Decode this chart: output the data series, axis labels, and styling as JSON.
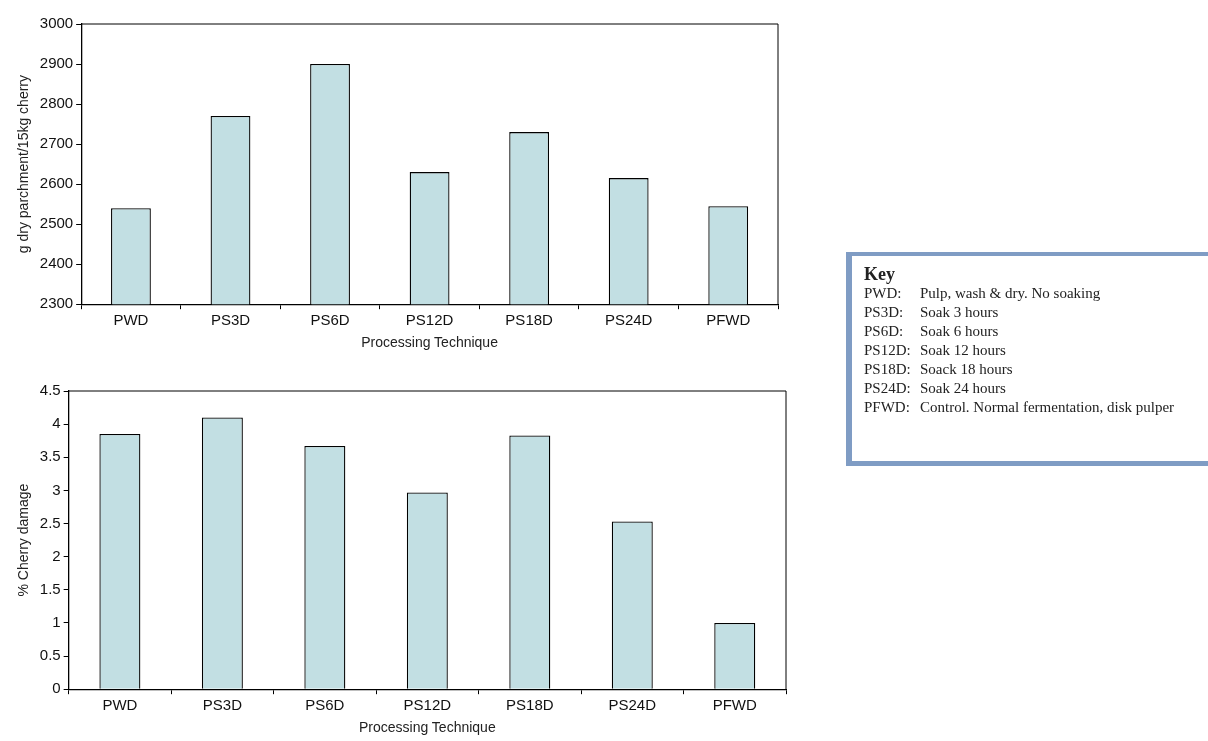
{
  "chart_data": [
    {
      "type": "bar",
      "categories": [
        "PWD",
        "PS3D",
        "PS6D",
        "PS12D",
        "PS18D",
        "PS24D",
        "PFWD"
      ],
      "values": [
        2540,
        2770,
        2900,
        2630,
        2730,
        2615,
        2545
      ],
      "color": "#c2dfe3",
      "ylim": [
        2300,
        3000
      ],
      "yticks": [
        2300,
        2400,
        2500,
        2600,
        2700,
        2800,
        2900,
        3000
      ],
      "xlabel": "Processing Technique",
      "ylabel": "g dry parchment/15kg cherry"
    },
    {
      "type": "bar",
      "categories": [
        "PWD",
        "PS3D",
        "PS6D",
        "PS12D",
        "PS18D",
        "PS24D",
        "PFWD"
      ],
      "values": [
        3.85,
        4.1,
        3.67,
        2.97,
        3.83,
        2.53,
        1.0
      ],
      "color": "#c2dfe3",
      "ylim": [
        0,
        4.5
      ],
      "yticks": [
        0,
        0.5,
        1,
        1.5,
        2,
        2.5,
        3,
        3.5,
        4,
        4.5
      ],
      "xlabel": "Processing Technique",
      "ylabel": "% Cherry damage"
    },
    {
      "type": "other",
      "title": "Key",
      "annotations": [
        "PWD: Pulp, wash & dry. No soaking",
        "PS3D: Soak 3 hours",
        "PS6D: Soak 6 hours",
        "PS12D: Soak 12 hours",
        "PS18D: Soack 18 hours",
        "PS24D: Soak 24 hours",
        "PFWD: Control. Normal fermentation, disk pulper"
      ]
    }
  ]
}
